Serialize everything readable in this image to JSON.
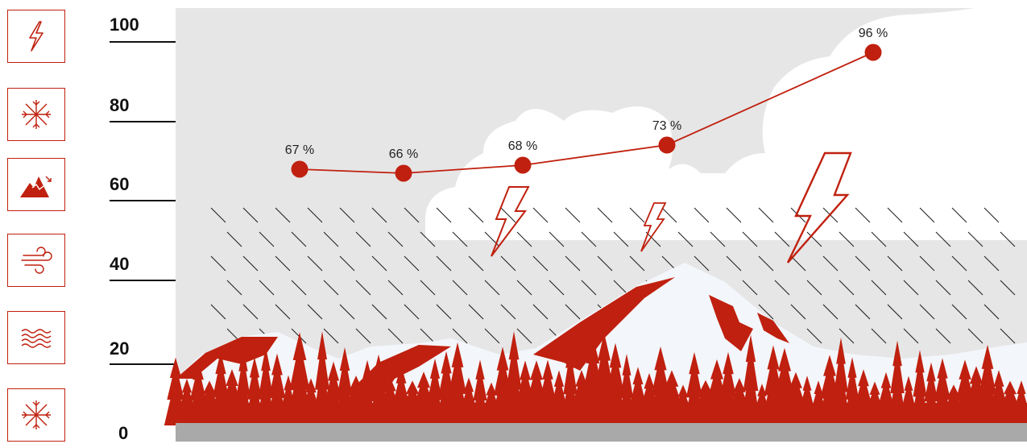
{
  "chart_data": {
    "type": "line",
    "x": [
      1,
      2,
      3,
      4,
      5
    ],
    "values": [
      67,
      66,
      68,
      73,
      96
    ],
    "data_labels": [
      "67 %",
      "66 %",
      "68 %",
      "73 %",
      "96 %"
    ],
    "ylim": [
      0,
      100
    ],
    "yticks": [
      "100",
      "80",
      "60",
      "40",
      "20",
      "0"
    ],
    "title": "",
    "xlabel": "",
    "ylabel": ""
  },
  "colors": {
    "accent": "#c0200f",
    "sky": "#e6e6e6",
    "cloud": "#ffffff",
    "ground": "#a9a9a9"
  },
  "icons": [
    "lightning-icon",
    "snowflake-icon",
    "mountain-avalanche-icon",
    "wind-icon",
    "waves-icon",
    "snowflake-icon"
  ]
}
